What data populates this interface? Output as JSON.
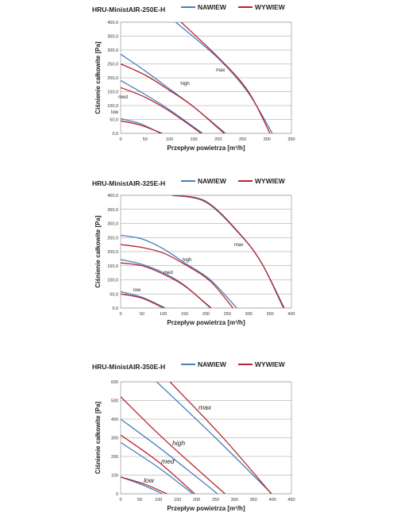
{
  "chart_data": [
    {
      "type": "line",
      "title": "HRU-MinistAIR-250E-H",
      "xlabel": "Przepływ powietrza [m³/h]",
      "ylabel": "Ciśnienie całkowite [Pa]",
      "xlim": [
        0,
        350
      ],
      "ylim": [
        0,
        400
      ],
      "xticks": [
        0,
        50,
        100,
        150,
        200,
        250,
        300,
        350
      ],
      "yticks": [
        0,
        50,
        100,
        150,
        200,
        250,
        300,
        350,
        400
      ],
      "xtick_labels": [
        "0",
        "50",
        "100",
        "150",
        "200",
        "250",
        "300",
        "350"
      ],
      "ytick_labels": [
        "0,0",
        "50,0",
        "100,0",
        "150,0",
        "200,0",
        "250,0",
        "300,0",
        "350,0",
        "400,0"
      ],
      "grid": "horizontal",
      "legend": "top-right",
      "series": [
        {
          "name": "NAWIEW",
          "color": "#4a7ebb",
          "curves": [
            {
              "level": "max",
              "points": [
                [
                  113,
                  400
                ],
                [
                  200,
                  270
                ],
                [
                  260,
                  150
                ],
                [
                  311,
                  0
                ]
              ]
            },
            {
              "level": "high",
              "points": [
                [
                  0,
                  285
                ],
                [
                  50,
                  225
                ],
                [
                  100,
                  160
                ],
                [
                  150,
                  95
                ],
                [
                  215,
                  0
                ]
              ]
            },
            {
              "level": "med",
              "points": [
                [
                  0,
                  190
                ],
                [
                  50,
                  140
                ],
                [
                  100,
                  85
                ],
                [
                  168,
                  0
                ]
              ]
            },
            {
              "level": "low",
              "points": [
                [
                  0,
                  53
                ],
                [
                  40,
                  35
                ],
                [
                  82,
                  0
                ]
              ]
            }
          ]
        },
        {
          "name": "WYWIEW",
          "color": "#b8242c",
          "curves": [
            {
              "level": "max",
              "points": [
                [
                  124,
                  400
                ],
                [
                  205,
                  265
                ],
                [
                  262,
                  150
                ],
                [
                  306,
                  0
                ]
              ]
            },
            {
              "level": "high",
              "points": [
                [
                  0,
                  250
                ],
                [
                  50,
                  210
                ],
                [
                  100,
                  155
                ],
                [
                  150,
                  95
                ],
                [
                  212,
                  0
                ]
              ]
            },
            {
              "level": "med",
              "points": [
                [
                  0,
                  165
                ],
                [
                  50,
                  130
                ],
                [
                  100,
                  80
                ],
                [
                  165,
                  0
                ]
              ]
            },
            {
              "level": "low",
              "points": [
                [
                  0,
                  45
                ],
                [
                  40,
                  30
                ],
                [
                  85,
                  0
                ]
              ]
            }
          ]
        }
      ],
      "annotations": [
        "max",
        "high",
        "med",
        "low"
      ]
    },
    {
      "type": "line",
      "title": "HRU-MinistAIR-325E-H",
      "xlabel": "Przepływ powietrza [m³/h]",
      "ylabel": "Ciśnienie całkowite [Pa]",
      "xlim": [
        0,
        400
      ],
      "ylim": [
        0,
        400
      ],
      "xticks": [
        0,
        50,
        100,
        150,
        200,
        250,
        300,
        350,
        400
      ],
      "yticks": [
        0,
        50,
        100,
        150,
        200,
        250,
        300,
        350,
        400
      ],
      "xtick_labels": [
        "0",
        "50",
        "100",
        "150",
        "200",
        "250",
        "300",
        "350",
        "400"
      ],
      "ytick_labels": [
        "0,0",
        "50,0",
        "100,0",
        "150,0",
        "200,0",
        "250,0",
        "300,0",
        "350,0",
        "400,0"
      ],
      "grid": "horizontal",
      "legend": "top-right",
      "series": [
        {
          "name": "NAWIEW",
          "color": "#4a7ebb",
          "curves": [
            {
              "level": "max",
              "points": [
                [
                  120,
                  400
                ],
                [
                  200,
                  375
                ],
                [
                  280,
                  260
                ],
                [
                  330,
                  160
                ],
                [
                  381,
                  0
                ]
              ]
            },
            {
              "level": "high",
              "points": [
                [
                  0,
                  258
                ],
                [
                  50,
                  245
                ],
                [
                  100,
                  210
                ],
                [
                  150,
                  160
                ],
                [
                  210,
                  100
                ],
                [
                  272,
                  0
                ]
              ]
            },
            {
              "level": "med",
              "points": [
                [
                  0,
                  172
                ],
                [
                  50,
                  155
                ],
                [
                  100,
                  125
                ],
                [
                  150,
                  80
                ],
                [
                  210,
                  0
                ]
              ]
            },
            {
              "level": "low",
              "points": [
                [
                  0,
                  58
                ],
                [
                  50,
                  38
                ],
                [
                  105,
                  0
                ]
              ]
            }
          ]
        },
        {
          "name": "WYWIEW",
          "color": "#b8242c",
          "curves": [
            {
              "level": "max",
              "points": [
                [
                  120,
                  400
                ],
                [
                  200,
                  378
                ],
                [
                  280,
                  262
                ],
                [
                  330,
                  160
                ],
                [
                  383,
                  0
                ]
              ]
            },
            {
              "level": "high",
              "points": [
                [
                  0,
                  225
                ],
                [
                  50,
                  215
                ],
                [
                  100,
                  195
                ],
                [
                  150,
                  155
                ],
                [
                  210,
                  95
                ],
                [
                  263,
                  0
                ]
              ]
            },
            {
              "level": "med",
              "points": [
                [
                  0,
                  160
                ],
                [
                  50,
                  150
                ],
                [
                  100,
                  120
                ],
                [
                  150,
                  78
                ],
                [
                  212,
                  0
                ]
              ]
            },
            {
              "level": "low",
              "points": [
                [
                  0,
                  50
                ],
                [
                  50,
                  35
                ],
                [
                  100,
                  0
                ]
              ]
            }
          ]
        }
      ],
      "annotations": [
        "max",
        "high",
        "med",
        "low"
      ]
    },
    {
      "type": "line",
      "title": "HRU-MinistAIR-350E-H",
      "xlabel": "Przepływ powietrza [m³/h]",
      "ylabel": "Ciśnienie całkowite [Pa]",
      "xlim": [
        0,
        450
      ],
      "ylim": [
        0,
        600
      ],
      "xticks": [
        0,
        50,
        100,
        150,
        200,
        250,
        300,
        350,
        400,
        450
      ],
      "yticks": [
        0,
        100,
        200,
        300,
        400,
        500,
        600
      ],
      "xtick_labels": [
        "0",
        "50",
        "100",
        "150",
        "200",
        "250",
        "300",
        "350",
        "400",
        "450"
      ],
      "ytick_labels": [
        "0",
        "100",
        "200",
        "300",
        "400",
        "500",
        "600"
      ],
      "grid": "horizontal",
      "legend": "top-right",
      "series": [
        {
          "name": "NAWIEW",
          "color": "#4a7ebb",
          "curves": [
            {
              "level": "max",
              "points": [
                [
                  95,
                  600
                ],
                [
                  250,
                  300
                ],
                [
                  398,
                  0
                ]
              ]
            },
            {
              "level": "high",
              "points": [
                [
                  0,
                  400
                ],
                [
                  100,
                  250
                ],
                [
                  200,
                  90
                ],
                [
                  255,
                  0
                ]
              ]
            },
            {
              "level": "med",
              "points": [
                [
                  0,
                  275
                ],
                [
                  100,
                  140
                ],
                [
                  190,
                  0
                ]
              ]
            },
            {
              "level": "low",
              "points": [
                [
                  0,
                  90
                ],
                [
                  60,
                  45
                ],
                [
                  110,
                  0
                ]
              ]
            }
          ]
        },
        {
          "name": "WYWIEW",
          "color": "#b8242c",
          "curves": [
            {
              "level": "max",
              "points": [
                [
                  130,
                  600
                ],
                [
                  270,
                  300
                ],
                [
                  397,
                  0
                ]
              ]
            },
            {
              "level": "high",
              "points": [
                [
                  0,
                  520
                ],
                [
                  100,
                  320
                ],
                [
                  200,
                  135
                ],
                [
                  275,
                  0
                ]
              ]
            },
            {
              "level": "med",
              "points": [
                [
                  0,
                  315
                ],
                [
                  100,
                  170
                ],
                [
                  195,
                  0
                ]
              ]
            },
            {
              "level": "low",
              "points": [
                [
                  0,
                  90
                ],
                [
                  65,
                  50
                ],
                [
                  122,
                  0
                ]
              ]
            }
          ]
        }
      ],
      "annotations": [
        "max",
        "high",
        "med",
        "low"
      ]
    }
  ]
}
